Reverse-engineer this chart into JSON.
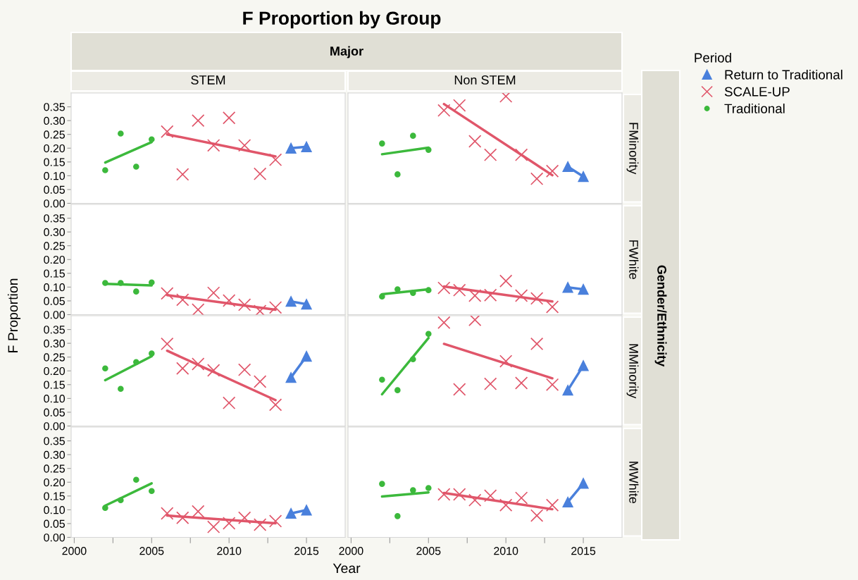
{
  "chart_data": [
    {
      "type": "scatter",
      "title": "F Proportion by Group",
      "subtitle": "STEM",
      "xlabel": "Year",
      "ylabel": "F Proportion",
      "legend_title": "Period",
      "legend": "right",
      "annotations": [
        "Major",
        "Gender/Ethnicity"
      ],
      "tick_labels": "y",
      "xlim": [
        1999.8,
        2017.5
      ],
      "ylim": [
        0,
        0.4
      ],
      "yticks": [
        {
          "value": 0,
          "label": "0.00"
        },
        {
          "value": 0.05,
          "label": "0.05"
        },
        {
          "value": 0.1,
          "label": "0.10"
        },
        {
          "value": 0.15,
          "label": "0.15"
        },
        {
          "value": 0.2,
          "label": "0.20"
        },
        {
          "value": 0.25,
          "label": "0.25"
        },
        {
          "value": 0.3,
          "label": "0.30"
        },
        {
          "value": 0.35,
          "label": "0.35"
        }
      ],
      "series": [
        {
          "name": "Return to Traditional",
          "type": "line",
          "marker": "triangle",
          "color": "#4a80dc",
          "x": [
            2014,
            2015
          ],
          "values": [
            0.2,
            0.205
          ]
        },
        {
          "name": "SCALE-UP",
          "marker": "cross",
          "color": "#e0566a",
          "x": [
            2006,
            2007,
            2008,
            2009,
            2010,
            2011,
            2012,
            2013
          ],
          "values": [
            0.26,
            0.105,
            0.3,
            0.21,
            0.31,
            0.21,
            0.107,
            0.158
          ]
        },
        {
          "name": "Traditional",
          "marker": "circle",
          "color": "#3cb93c",
          "x": [
            2002,
            2003,
            2004,
            2005
          ],
          "values": [
            0.12,
            0.253,
            0.133,
            0.232
          ]
        },
        {
          "type": "line",
          "color": "#e0566a",
          "x": [
            2006,
            2013
          ],
          "values": [
            0.25,
            0.17
          ]
        },
        {
          "type": "line",
          "color": "#3cb93c",
          "x": [
            2002,
            2005
          ],
          "values": [
            0.148,
            0.222
          ]
        }
      ]
    },
    {
      "type": "scatter",
      "subtitle": "Non STEM",
      "y2label": "FMinority",
      "tick_labels": false,
      "xlim": [
        1999.8,
        2017.5
      ],
      "ylim": [
        0,
        0.4
      ],
      "series": [
        {
          "type": "line",
          "marker": "triangle",
          "color": "#4a80dc",
          "x": [
            2014,
            2015
          ],
          "values": [
            0.133,
            0.097
          ]
        },
        {
          "marker": "cross",
          "color": "#e0566a",
          "x": [
            2006,
            2007,
            2008,
            2009,
            2010,
            2011,
            2012,
            2013
          ],
          "values": [
            0.337,
            0.355,
            0.225,
            0.176,
            0.388,
            0.176,
            0.089,
            0.117
          ]
        },
        {
          "marker": "circle",
          "color": "#3cb93c",
          "x": [
            2002,
            2003,
            2004,
            2005
          ],
          "values": [
            0.217,
            0.105,
            0.245,
            0.194
          ]
        },
        {
          "type": "line",
          "color": "#e0566a",
          "x": [
            2006,
            2013
          ],
          "values": [
            0.36,
            0.102
          ]
        },
        {
          "type": "line",
          "color": "#3cb93c",
          "x": [
            2002,
            2005
          ],
          "values": [
            0.178,
            0.202
          ]
        }
      ]
    },
    {
      "type": "scatter",
      "tick_labels": "y",
      "xlim": [
        1999.8,
        2017.5
      ],
      "ylim": [
        0,
        0.4
      ],
      "yticks": [
        {
          "value": 0,
          "label": "0.00"
        },
        {
          "value": 0.05,
          "label": "0.05"
        },
        {
          "value": 0.1,
          "label": "0.10"
        },
        {
          "value": 0.15,
          "label": "0.15"
        },
        {
          "value": 0.2,
          "label": "0.20"
        },
        {
          "value": 0.25,
          "label": "0.25"
        },
        {
          "value": 0.3,
          "label": "0.30"
        },
        {
          "value": 0.35,
          "label": "0.35"
        }
      ],
      "series": [
        {
          "type": "line",
          "marker": "triangle",
          "color": "#4a80dc",
          "x": [
            2014,
            2015
          ],
          "values": [
            0.048,
            0.038
          ]
        },
        {
          "marker": "cross",
          "color": "#e0566a",
          "x": [
            2006,
            2007,
            2008,
            2009,
            2010,
            2011,
            2012,
            2013
          ],
          "values": [
            0.077,
            0.054,
            0.018,
            0.079,
            0.051,
            0.036,
            0.013,
            0.026
          ]
        },
        {
          "marker": "circle",
          "color": "#3cb93c",
          "x": [
            2002,
            2003,
            2004,
            2005
          ],
          "values": [
            0.115,
            0.115,
            0.084,
            0.117
          ]
        },
        {
          "type": "line",
          "color": "#e0566a",
          "x": [
            2006,
            2013
          ],
          "values": [
            0.071,
            0.018
          ]
        },
        {
          "type": "line",
          "color": "#3cb93c",
          "x": [
            2002,
            2005
          ],
          "values": [
            0.112,
            0.106
          ]
        }
      ]
    },
    {
      "type": "scatter",
      "y2label": "FWhite",
      "tick_labels": false,
      "xlim": [
        1999.8,
        2017.5
      ],
      "ylim": [
        0,
        0.4
      ],
      "series": [
        {
          "type": "line",
          "marker": "triangle",
          "color": "#4a80dc",
          "x": [
            2014,
            2015
          ],
          "values": [
            0.099,
            0.092
          ]
        },
        {
          "marker": "cross",
          "color": "#e0566a",
          "x": [
            2006,
            2007,
            2008,
            2009,
            2010,
            2011,
            2012,
            2013
          ],
          "values": [
            0.097,
            0.089,
            0.069,
            0.071,
            0.122,
            0.069,
            0.059,
            0.028
          ]
        },
        {
          "marker": "circle",
          "color": "#3cb93c",
          "x": [
            2002,
            2003,
            2004,
            2005
          ],
          "values": [
            0.066,
            0.092,
            0.079,
            0.089
          ]
        },
        {
          "type": "line",
          "color": "#e0566a",
          "x": [
            2006,
            2013
          ],
          "values": [
            0.102,
            0.048
          ]
        },
        {
          "type": "line",
          "color": "#3cb93c",
          "x": [
            2002,
            2005
          ],
          "values": [
            0.074,
            0.092
          ]
        }
      ]
    },
    {
      "type": "scatter",
      "tick_labels": "y",
      "xlim": [
        1999.8,
        2017.5
      ],
      "ylim": [
        0,
        0.4
      ],
      "yticks": [
        {
          "value": 0,
          "label": "0.00"
        },
        {
          "value": 0.05,
          "label": "0.05"
        },
        {
          "value": 0.1,
          "label": "0.10"
        },
        {
          "value": 0.15,
          "label": "0.15"
        },
        {
          "value": 0.2,
          "label": "0.20"
        },
        {
          "value": 0.25,
          "label": "0.25"
        },
        {
          "value": 0.3,
          "label": "0.30"
        },
        {
          "value": 0.35,
          "label": "0.35"
        }
      ],
      "series": [
        {
          "type": "line",
          "marker": "triangle",
          "color": "#4a80dc",
          "x": [
            2014,
            2015
          ],
          "values": [
            0.176,
            0.253
          ]
        },
        {
          "marker": "cross",
          "color": "#e0566a",
          "x": [
            2006,
            2007,
            2008,
            2009,
            2010,
            2011,
            2012,
            2013
          ],
          "values": [
            0.298,
            0.209,
            0.225,
            0.202,
            0.084,
            0.204,
            0.161,
            0.077
          ]
        },
        {
          "marker": "circle",
          "color": "#3cb93c",
          "x": [
            2002,
            2003,
            2004,
            2005
          ],
          "values": [
            0.209,
            0.135,
            0.232,
            0.263
          ]
        },
        {
          "type": "line",
          "color": "#e0566a",
          "x": [
            2006,
            2013
          ],
          "values": [
            0.273,
            0.094
          ]
        },
        {
          "type": "line",
          "color": "#3cb93c",
          "x": [
            2002,
            2005
          ],
          "values": [
            0.166,
            0.253
          ]
        }
      ]
    },
    {
      "type": "scatter",
      "y2label": "MMinority",
      "tick_labels": false,
      "xlim": [
        1999.8,
        2017.5
      ],
      "ylim": [
        0,
        0.4
      ],
      "series": [
        {
          "type": "line",
          "marker": "triangle",
          "color": "#4a80dc",
          "x": [
            2014,
            2015
          ],
          "values": [
            0.13,
            0.219
          ]
        },
        {
          "marker": "cross",
          "color": "#e0566a",
          "x": [
            2006,
            2007,
            2008,
            2009,
            2010,
            2011,
            2012,
            2013
          ],
          "values": [
            0.375,
            0.133,
            0.385,
            0.153,
            0.235,
            0.156,
            0.298,
            0.15
          ]
        },
        {
          "marker": "circle",
          "color": "#3cb93c",
          "x": [
            2002,
            2003,
            2004,
            2005
          ],
          "values": [
            0.168,
            0.13,
            0.242,
            0.334
          ]
        },
        {
          "type": "line",
          "color": "#e0566a",
          "x": [
            2006,
            2013
          ],
          "values": [
            0.298,
            0.173
          ]
        },
        {
          "type": "line",
          "color": "#3cb93c",
          "x": [
            2002,
            2005
          ],
          "values": [
            0.115,
            0.319
          ]
        }
      ]
    },
    {
      "type": "scatter",
      "xlim": [
        1999.8,
        2017.5
      ],
      "xticks": [
        2000,
        {
          "value": 2002.5,
          "label": null
        },
        2005,
        {
          "value": 2007.5,
          "label": null
        },
        2010,
        {
          "value": 2012.5,
          "label": null
        },
        2015
      ],
      "ylim": [
        0,
        0.4
      ],
      "yticks": [
        {
          "value": 0,
          "label": "0.00"
        },
        {
          "value": 0.05,
          "label": "0.05"
        },
        {
          "value": 0.1,
          "label": "0.10"
        },
        {
          "value": 0.15,
          "label": "0.15"
        },
        {
          "value": 0.2,
          "label": "0.20"
        },
        {
          "value": 0.25,
          "label": "0.25"
        },
        {
          "value": 0.3,
          "label": "0.30"
        },
        {
          "value": 0.35,
          "label": "0.35"
        }
      ],
      "series": [
        {
          "type": "line",
          "marker": "triangle",
          "color": "#4a80dc",
          "x": [
            2014,
            2015
          ],
          "values": [
            0.087,
            0.099
          ]
        },
        {
          "marker": "cross",
          "color": "#e0566a",
          "x": [
            2006,
            2007,
            2008,
            2009,
            2010,
            2011,
            2012,
            2013
          ],
          "values": [
            0.087,
            0.071,
            0.094,
            0.038,
            0.051,
            0.071,
            0.046,
            0.059
          ]
        },
        {
          "marker": "circle",
          "color": "#3cb93c",
          "x": [
            2002,
            2003,
            2004,
            2005
          ],
          "values": [
            0.107,
            0.135,
            0.209,
            0.168
          ]
        },
        {
          "type": "line",
          "color": "#e0566a",
          "x": [
            2006,
            2013
          ],
          "values": [
            0.079,
            0.051
          ]
        },
        {
          "type": "line",
          "color": "#3cb93c",
          "x": [
            2002,
            2005
          ],
          "values": [
            0.115,
            0.196
          ]
        }
      ]
    },
    {
      "type": "scatter",
      "y2label": "MWhite",
      "tick_labels": "x",
      "xlim": [
        1999.8,
        2017.5
      ],
      "xticks": [
        2000,
        {
          "value": 2002.5,
          "label": null
        },
        2005,
        {
          "value": 2007.5,
          "label": null
        },
        2010,
        {
          "value": 2012.5,
          "label": null
        },
        2015
      ],
      "ylim": [
        0,
        0.4
      ],
      "series": [
        {
          "type": "line",
          "marker": "triangle",
          "color": "#4a80dc",
          "x": [
            2014,
            2015
          ],
          "values": [
            0.128,
            0.196
          ]
        },
        {
          "marker": "cross",
          "color": "#e0566a",
          "x": [
            2006,
            2007,
            2008,
            2009,
            2010,
            2011,
            2012,
            2013
          ],
          "values": [
            0.156,
            0.156,
            0.135,
            0.151,
            0.117,
            0.143,
            0.079,
            0.117
          ]
        },
        {
          "marker": "circle",
          "color": "#3cb93c",
          "x": [
            2002,
            2003,
            2004,
            2005
          ],
          "values": [
            0.194,
            0.077,
            0.171,
            0.179
          ]
        },
        {
          "type": "line",
          "color": "#e0566a",
          "x": [
            2006,
            2013
          ],
          "values": [
            0.161,
            0.102
          ]
        },
        {
          "type": "line",
          "color": "#3cb93c",
          "x": [
            2002,
            2005
          ],
          "values": [
            0.148,
            0.163
          ]
        }
      ]
    }
  ]
}
